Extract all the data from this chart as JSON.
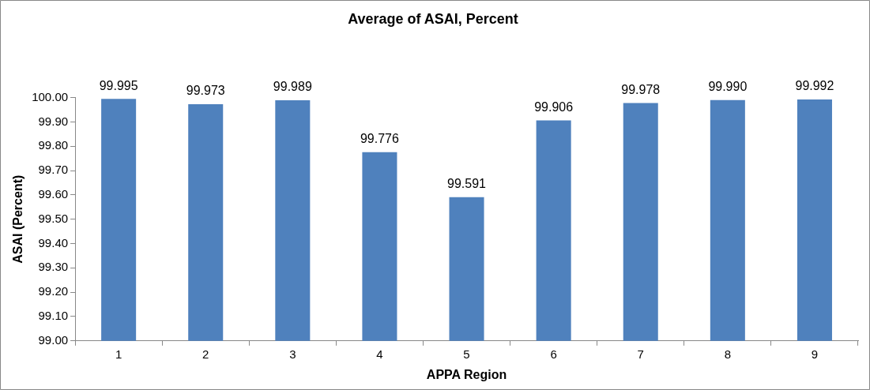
{
  "chart_data": {
    "type": "bar",
    "title": "Average of ASAI, Percent",
    "xlabel": "APPA Region",
    "ylabel": "ASAI (Percent)",
    "categories": [
      "1",
      "2",
      "3",
      "4",
      "5",
      "6",
      "7",
      "8",
      "9"
    ],
    "values": [
      99.995,
      99.973,
      99.989,
      99.776,
      99.591,
      99.906,
      99.978,
      99.99,
      99.992
    ],
    "value_labels": [
      "99.995",
      "99.973",
      "99.989",
      "99.776",
      "99.591",
      "99.906",
      "99.978",
      "99.990",
      "99.992"
    ],
    "color": "#4f81bd",
    "ylim": [
      99,
      100
    ],
    "yticks": [
      {
        "value": 99,
        "label": "99.00"
      },
      {
        "value": 99.1,
        "label": "99.10"
      },
      {
        "value": 99.2,
        "label": "99.20"
      },
      {
        "value": 99.3,
        "label": "99.30"
      },
      {
        "value": 99.4,
        "label": "99.40"
      },
      {
        "value": 99.5,
        "label": "99.50"
      },
      {
        "value": 99.6,
        "label": "99.60"
      },
      {
        "value": 99.7,
        "label": "99.70"
      },
      {
        "value": 99.8,
        "label": "99.80"
      },
      {
        "value": 99.9,
        "label": "99.90"
      },
      {
        "value": 100,
        "label": "100.00"
      }
    ],
    "grid": false,
    "legend": false
  }
}
